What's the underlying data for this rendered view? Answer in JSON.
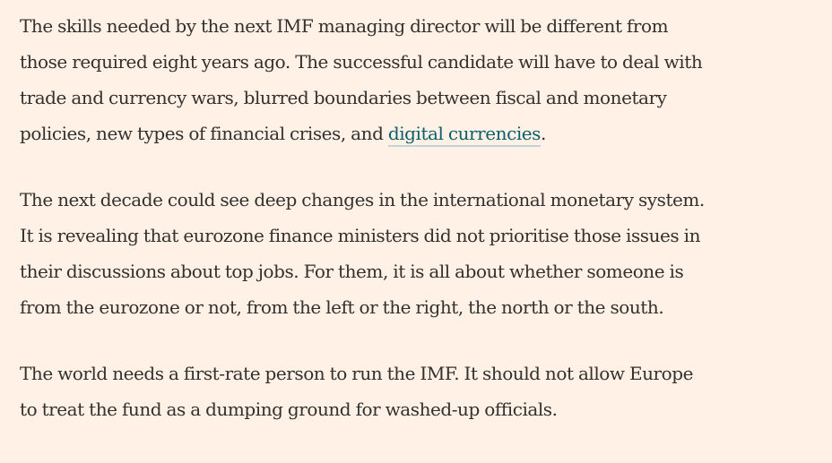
{
  "article": {
    "paragraphs": [
      {
        "lines": [
          "The skills needed by the next IMF managing director will be different from",
          "those required eight years ago. The successful candidate will have to deal with",
          "trade and currency wars, blurred boundaries between fiscal and monetary"
        ],
        "last_line_before_link": "policies, new types of financial crises, and ",
        "link_text": "digital currencies",
        "last_line_after_link": "."
      },
      {
        "lines": [
          "The next decade could see deep changes in the international monetary system.",
          "It is revealing that eurozone finance ministers did not prioritise those issues in",
          "their discussions about top jobs. For them, it is all about whether someone is",
          "from the eurozone or not, from the left or the right, the north or the south."
        ]
      },
      {
        "lines": [
          "The world needs a first-rate person to run the IMF. It should not allow Europe",
          "to treat the fund as a dumping ground for washed-up officials."
        ]
      }
    ]
  }
}
